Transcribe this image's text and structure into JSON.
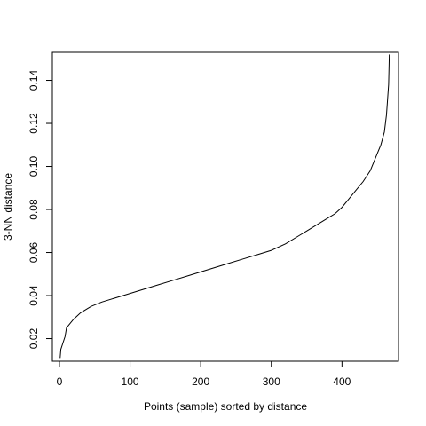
{
  "chart_data": {
    "type": "line",
    "title": "",
    "xlabel": "Points (sample) sorted by distance",
    "ylabel": "3-NN distance",
    "xlim": [
      -10,
      480
    ],
    "ylim": [
      0.0095,
      0.153
    ],
    "xticks": [
      0,
      100,
      200,
      300,
      400
    ],
    "yticks": [
      0.02,
      0.04,
      0.06,
      0.08,
      0.1,
      0.12,
      0.14
    ],
    "ytick_labels": [
      "0.02",
      "0.04",
      "0.06",
      "0.08",
      "0.10",
      "0.12",
      "0.14"
    ],
    "grid": false,
    "legend": "none",
    "line_color": "#000000",
    "series": [
      {
        "x": [
          1,
          2,
          5,
          8,
          10,
          15,
          20,
          30,
          40,
          45,
          60,
          80,
          100,
          120,
          140,
          160,
          180,
          200,
          220,
          240,
          260,
          280,
          300,
          320,
          340,
          350,
          360,
          370,
          380,
          390,
          400,
          410,
          420,
          430,
          440,
          445,
          450,
          455,
          460,
          463,
          466,
          467
        ],
        "y": [
          0.011,
          0.015,
          0.018,
          0.021,
          0.025,
          0.027,
          0.029,
          0.032,
          0.034,
          0.035,
          0.037,
          0.039,
          0.041,
          0.043,
          0.045,
          0.047,
          0.049,
          0.051,
          0.053,
          0.055,
          0.057,
          0.059,
          0.061,
          0.064,
          0.068,
          0.07,
          0.072,
          0.074,
          0.076,
          0.078,
          0.081,
          0.085,
          0.089,
          0.093,
          0.098,
          0.102,
          0.106,
          0.11,
          0.116,
          0.124,
          0.138,
          0.152
        ]
      }
    ]
  }
}
